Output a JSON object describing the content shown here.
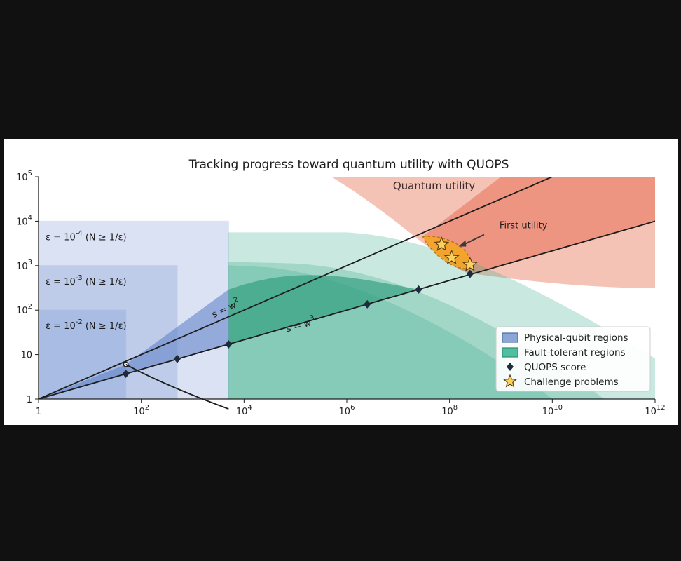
{
  "chart_data": {
    "type": "area",
    "title": "Tracking progress toward quantum utility with QUOPS",
    "x_scale": "log",
    "y_scale": "log",
    "xlim": [
      1,
      1000000000000.0
    ],
    "ylim": [
      1,
      100000.0
    ],
    "x_ticks": [
      {
        "value": 1,
        "label": "1"
      },
      {
        "value": 100,
        "label": "10^2"
      },
      {
        "value": 10000,
        "label": "10^4"
      },
      {
        "value": 1000000,
        "label": "10^6"
      },
      {
        "value": 100000000,
        "label": "10^8"
      },
      {
        "value": 10000000000,
        "label": "10^10"
      },
      {
        "value": 1000000000000,
        "label": "10^12"
      }
    ],
    "y_ticks": [
      {
        "value": 1,
        "label": "1"
      },
      {
        "value": 10,
        "label": "10"
      },
      {
        "value": 100,
        "label": "10^2"
      },
      {
        "value": 1000,
        "label": "10^3"
      },
      {
        "value": 10000,
        "label": "10^4"
      },
      {
        "value": 100000,
        "label": "10^5"
      }
    ],
    "curves": [
      {
        "label": "s = w^2",
        "exponent": 2
      },
      {
        "label": "s = w^3",
        "exponent": 3
      }
    ],
    "physical_regions": [
      {
        "label": "ε = 10^-2  (N ≥ 1/ε)",
        "x_max": 50,
        "y_max": 100
      },
      {
        "label": "ε = 10^-3  (N ≥ 1/ε)",
        "x_max": 500,
        "y_max": 1000
      },
      {
        "label": "ε = 10^-4  (N ≥ 1/ε)",
        "x_max": 5000,
        "y_max": 10000
      }
    ],
    "quops_score": [
      {
        "x": 50,
        "y": 3.7
      },
      {
        "x": 500,
        "y": 8
      },
      {
        "x": 5000,
        "y": 17
      },
      {
        "x": 2500000,
        "y": 135
      },
      {
        "x": 25000000,
        "y": 290
      },
      {
        "x": 250000000,
        "y": 650
      }
    ],
    "challenge_problems": [
      {
        "x": 70000000,
        "y": 3000
      },
      {
        "x": 110000000,
        "y": 1500
      },
      {
        "x": 250000000,
        "y": 1050
      }
    ],
    "annotations": {
      "quantum_utility": "Quantum utility",
      "first_utility": "First utility"
    },
    "legend": {
      "position": "lower-right",
      "entries": [
        {
          "label": "Physical-qubit regions",
          "color": "#8ea6d6"
        },
        {
          "label": "Fault-tolerant regions",
          "color": "#4fbf9f"
        },
        {
          "label": "QUOPS score",
          "marker": "diamond"
        },
        {
          "label": "Challenge problems",
          "marker": "star"
        }
      ]
    },
    "colors": {
      "physical": "#6f8fd0",
      "fault_tolerant": "#3fae8e",
      "utility": "#ec8a74",
      "first_utility": "#f5a623",
      "marker": "#1e2b3c"
    }
  }
}
